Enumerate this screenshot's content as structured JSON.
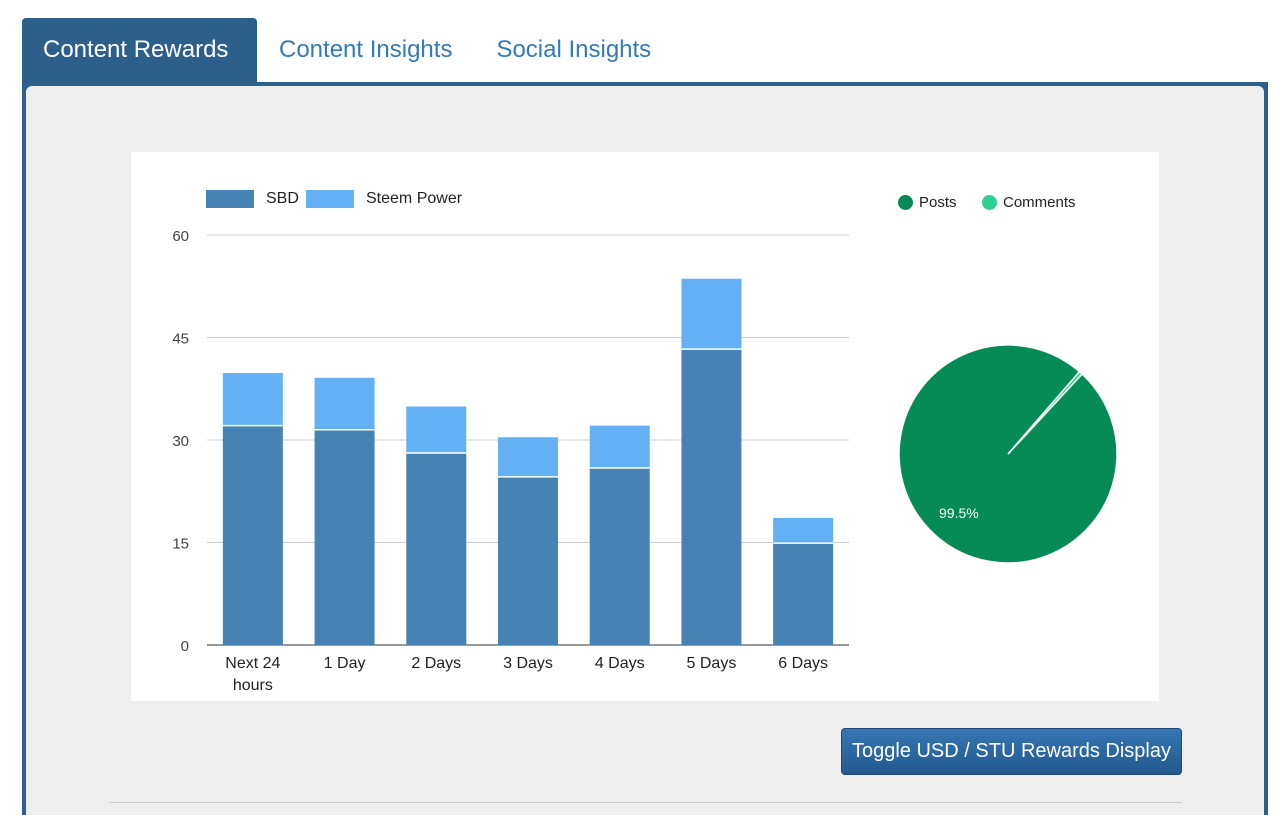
{
  "tabs": [
    {
      "label": "Content Rewards",
      "active": true
    },
    {
      "label": "Content Insights",
      "active": false
    },
    {
      "label": "Social Insights",
      "active": false
    }
  ],
  "colors": {
    "tab_active_bg": "#2d5f8b",
    "link": "#337ab7",
    "sbd": "#4682b4",
    "steem_power": "#63b0f5",
    "posts": "#068b56",
    "comments": "#2ed191"
  },
  "chart_data": [
    {
      "type": "bar",
      "stacked": true,
      "categories": [
        "Next 24 hours",
        "1 Day",
        "2 Days",
        "3 Days",
        "4 Days",
        "5 Days",
        "6 Days"
      ],
      "category_lines": [
        [
          "Next 24",
          "hours"
        ],
        [
          "1 Day"
        ],
        [
          "2 Days"
        ],
        [
          "3 Days"
        ],
        [
          "4 Days"
        ],
        [
          "5 Days"
        ],
        [
          "6 Days"
        ]
      ],
      "series": [
        {
          "name": "SBD",
          "values": [
            32.1,
            31.5,
            28.1,
            24.6,
            25.9,
            43.3,
            14.9
          ]
        },
        {
          "name": "Steem Power",
          "values": [
            7.7,
            7.6,
            6.8,
            5.8,
            6.2,
            10.3,
            3.7
          ]
        }
      ],
      "ylim": [
        0,
        60
      ],
      "yticks": [
        "0",
        "15",
        "30",
        "45",
        "60"
      ],
      "grid": true,
      "legend": "top-left"
    },
    {
      "type": "pie",
      "labels": [
        "Posts",
        "Comments"
      ],
      "values": [
        99.5,
        0.5
      ],
      "slice_label": "99.5%",
      "legend": "top"
    }
  ],
  "toggle_button_label": "Toggle USD / STU Rewards Display"
}
